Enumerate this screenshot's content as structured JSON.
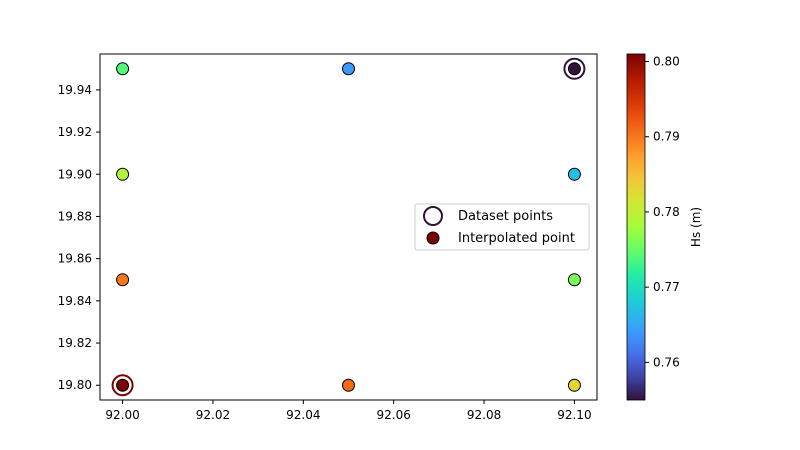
{
  "chart_data": {
    "type": "scatter",
    "title": "",
    "xlabel": "",
    "ylabel": "",
    "xlim": [
      91.995,
      92.105
    ],
    "ylim": [
      19.793,
      19.957
    ],
    "xticks": [
      "92.00",
      "92.02",
      "92.04",
      "92.06",
      "92.08",
      "92.10"
    ],
    "yticks": [
      "19.80",
      "19.82",
      "19.84",
      "19.86",
      "19.88",
      "19.90",
      "19.92",
      "19.94"
    ],
    "colorbar": {
      "label": "Hs (m)",
      "range": [
        0.755,
        0.801
      ],
      "ticks": [
        "0.76",
        "0.77",
        "0.78",
        "0.79",
        "0.80"
      ],
      "colormap": "turbo"
    },
    "series": [
      {
        "name": "Dataset points",
        "marker": "hollow-ring",
        "points": [
          {
            "x": 92.1,
            "y": 19.95,
            "hs": 0.755
          },
          {
            "x": 92.0,
            "y": 19.8,
            "hs": 0.801
          }
        ]
      },
      {
        "name": "Interpolated point",
        "marker": "filled-circle",
        "points": [
          {
            "x": 92.0,
            "y": 19.95,
            "hs": 0.774
          },
          {
            "x": 92.05,
            "y": 19.95,
            "hs": 0.764
          },
          {
            "x": 92.1,
            "y": 19.95,
            "hs": 0.755
          },
          {
            "x": 92.0,
            "y": 19.9,
            "hs": 0.779
          },
          {
            "x": 92.1,
            "y": 19.9,
            "hs": 0.767
          },
          {
            "x": 92.0,
            "y": 19.85,
            "hs": 0.79
          },
          {
            "x": 92.1,
            "y": 19.85,
            "hs": 0.776
          },
          {
            "x": 92.0,
            "y": 19.8,
            "hs": 0.801
          },
          {
            "x": 92.05,
            "y": 19.8,
            "hs": 0.791
          },
          {
            "x": 92.1,
            "y": 19.8,
            "hs": 0.783
          }
        ]
      }
    ],
    "legend": {
      "placement": "center-right",
      "entries": [
        "Dataset points",
        "Interpolated point"
      ]
    }
  }
}
